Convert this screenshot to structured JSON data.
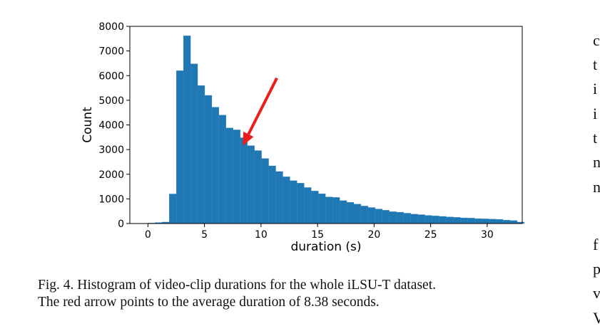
{
  "chart_data": {
    "type": "bar",
    "xlabel": "duration (s)",
    "ylabel": "Count",
    "xlim": [
      -1.6,
      33.1
    ],
    "ylim": [
      0,
      8000
    ],
    "x_ticks": [
      0,
      5,
      10,
      15,
      20,
      25,
      30
    ],
    "y_ticks": [
      0,
      1000,
      2000,
      3000,
      4000,
      5000,
      6000,
      7000,
      8000
    ],
    "bar_color": "#1f77b4",
    "bin_width": 0.628,
    "bin_start": 0,
    "values": [
      20,
      40,
      60,
      1200,
      6200,
      7620,
      6480,
      5600,
      5200,
      4720,
      4400,
      3880,
      3800,
      3480,
      3160,
      2960,
      2640,
      2340,
      2110,
      1900,
      1740,
      1640,
      1460,
      1320,
      1210,
      1080,
      1060,
      930,
      860,
      790,
      710,
      650,
      590,
      540,
      480,
      460,
      420,
      380,
      360,
      330,
      310,
      290,
      270,
      250,
      230,
      220,
      200,
      190,
      180,
      170,
      140,
      120,
      60
    ],
    "annotation": {
      "type": "arrow",
      "color": "#ee1c1c",
      "points_to_x": 8.38,
      "points_to_y": 3160,
      "from_x": 11.4,
      "from_y": 5900
    },
    "grid": false
  },
  "caption": {
    "line1": "Fig. 4.   Histogram of video-clip durations for the whole iLSU-T dataset.",
    "line2": "The red arrow points to the average duration of 8.38 seconds."
  },
  "right_column": [
    "c",
    "t",
    "i",
    "i",
    "t",
    "n",
    "n",
    "f",
    "p",
    "v",
    "V"
  ]
}
